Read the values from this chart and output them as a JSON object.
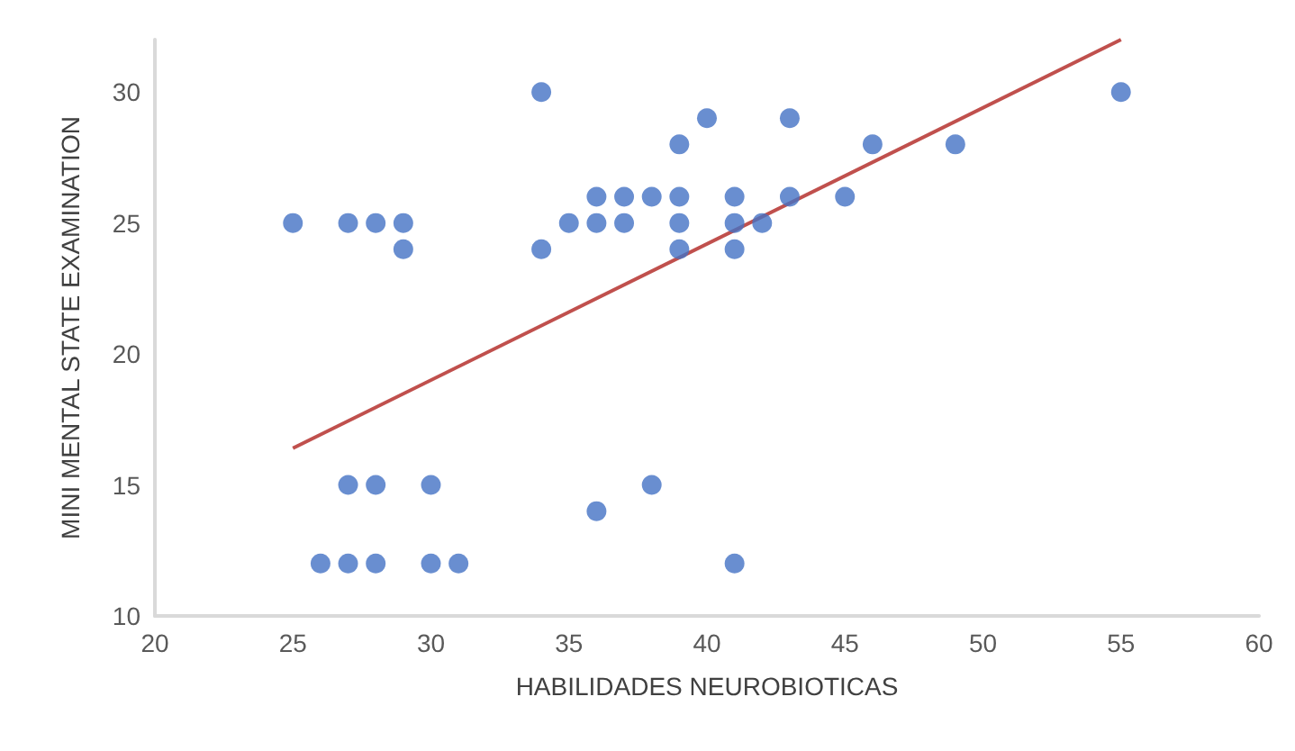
{
  "chart_data": {
    "type": "scatter",
    "xlabel": "HABILIDADES NEUROBIOTICAS",
    "ylabel": "MINI MENTAL STATE EXAMINATION",
    "xlim": [
      20,
      60
    ],
    "xticks": [
      20,
      25,
      30,
      35,
      40,
      45,
      50,
      55,
      60
    ],
    "ylim": [
      10,
      32
    ],
    "yticks": [
      10,
      15,
      20,
      25,
      30
    ],
    "grid": false,
    "marker": "circle",
    "series": [
      {
        "color": "#4472c4",
        "x": [
          25,
          27,
          28,
          29,
          29,
          34,
          34,
          35,
          36,
          36,
          37,
          37,
          38,
          39,
          39,
          39,
          39,
          40,
          41,
          41,
          41,
          42,
          43,
          43,
          45,
          46,
          49,
          55,
          27,
          28,
          30,
          38,
          36,
          26,
          27,
          28,
          30,
          31,
          41
        ],
        "values": [
          25,
          25,
          25,
          25,
          24,
          30,
          24,
          25,
          26,
          25,
          26,
          25,
          26,
          28,
          26,
          25,
          24,
          29,
          26,
          25,
          24,
          25,
          29,
          26,
          26,
          28,
          28,
          30,
          15,
          15,
          15,
          15,
          14,
          12,
          12,
          12,
          12,
          12,
          12
        ]
      },
      {
        "type": "line",
        "color": "#c0504d",
        "line_style": "solid",
        "marker": "none",
        "x": [
          25,
          55
        ],
        "values": [
          16.4,
          32
        ]
      }
    ]
  }
}
